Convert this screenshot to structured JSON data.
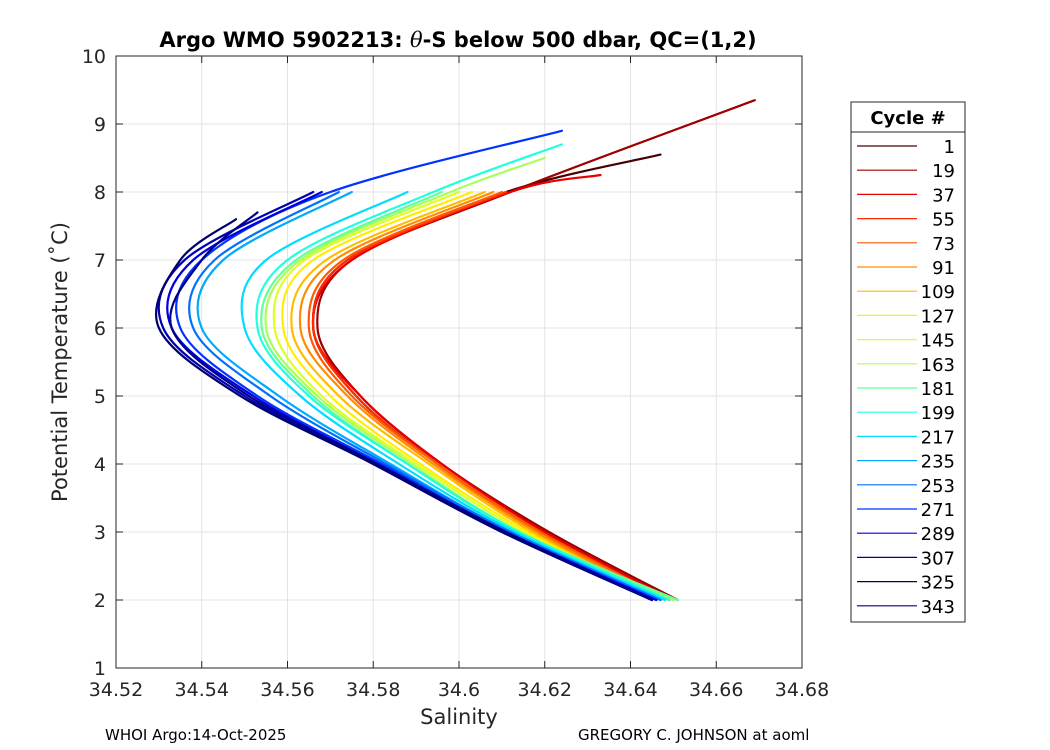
{
  "chart_data": {
    "type": "line",
    "title_parts": [
      "Argo WMO 5902213: ",
      "θ",
      "-S below 500 dbar,  QC=(1,2)"
    ],
    "xlabel": "Salinity",
    "ylabel": "Potential Temperature (˚C)",
    "xlim": [
      34.52,
      34.68
    ],
    "ylim": [
      1,
      10
    ],
    "xticks": [
      34.52,
      34.54,
      34.56,
      34.58,
      34.6,
      34.62,
      34.64,
      34.66,
      34.68
    ],
    "xtick_labels": [
      "34.52",
      "34.54",
      "34.56",
      "34.58",
      "34.6",
      "34.62",
      "34.64",
      "34.66",
      "34.68"
    ],
    "yticks": [
      1,
      2,
      3,
      4,
      5,
      6,
      7,
      8,
      9,
      10
    ],
    "ytick_labels": [
      "1",
      "2",
      "3",
      "4",
      "5",
      "6",
      "7",
      "8",
      "9",
      "10"
    ],
    "grid": true,
    "legend_title": "Cycle #",
    "legend_position": "outside-right",
    "series": [
      {
        "name": "1",
        "color": "#4a0000",
        "theta": [
          2.0,
          3.0,
          4.0,
          5.0,
          6.0,
          7.0,
          8.0,
          8.55
        ],
        "salinity": [
          34.649,
          34.619,
          34.595,
          34.576,
          34.566,
          34.574,
          34.611,
          34.647
        ]
      },
      {
        "name": "19",
        "color": "#9e0000",
        "theta": [
          2.0,
          3.0,
          4.0,
          5.0,
          6.0,
          7.0,
          8.0,
          9.35
        ],
        "salinity": [
          34.651,
          34.621,
          34.596,
          34.577,
          34.567,
          34.575,
          34.612,
          34.669
        ]
      },
      {
        "name": "37",
        "color": "#e60000",
        "theta": [
          2.0,
          3.0,
          4.0,
          5.0,
          6.0,
          7.0,
          8.0,
          8.25
        ],
        "salinity": [
          34.65,
          34.62,
          34.596,
          34.577,
          34.566,
          34.575,
          34.612,
          34.633
        ]
      },
      {
        "name": "55",
        "color": "#ff2a00",
        "theta": [
          2.0,
          3.0,
          4.0,
          5.0,
          6.0,
          7.0,
          8.0
        ],
        "salinity": [
          34.649,
          34.619,
          34.595,
          34.576,
          34.566,
          34.574,
          34.611
        ]
      },
      {
        "name": "73",
        "color": "#ff5a00",
        "theta": [
          2.0,
          3.0,
          4.0,
          5.0,
          6.0,
          7.0,
          8.0
        ],
        "salinity": [
          34.649,
          34.619,
          34.595,
          34.575,
          34.565,
          34.573,
          34.61
        ]
      },
      {
        "name": "91",
        "color": "#ff8c00",
        "theta": [
          2.0,
          3.0,
          4.0,
          5.0,
          6.0,
          7.0,
          8.0
        ],
        "salinity": [
          34.648,
          34.618,
          34.594,
          34.574,
          34.563,
          34.571,
          34.608
        ]
      },
      {
        "name": "109",
        "color": "#ffbc00",
        "theta": [
          2.0,
          3.0,
          4.0,
          5.0,
          6.0,
          7.0,
          8.0
        ],
        "salinity": [
          34.647,
          34.617,
          34.593,
          34.572,
          34.561,
          34.569,
          34.606
        ]
      },
      {
        "name": "127",
        "color": "#ffee00",
        "theta": [
          2.0,
          3.0,
          4.0,
          5.0,
          6.0,
          7.0,
          8.0
        ],
        "salinity": [
          34.647,
          34.616,
          34.591,
          34.57,
          34.559,
          34.566,
          34.603
        ]
      },
      {
        "name": "145",
        "color": "#ddff22",
        "theta": [
          2.0,
          3.0,
          4.0,
          5.0,
          6.0,
          7.0,
          8.0
        ],
        "salinity": [
          34.648,
          34.615,
          34.59,
          34.568,
          34.557,
          34.564,
          34.6
        ]
      },
      {
        "name": "163",
        "color": "#aaff55",
        "theta": [
          2.0,
          3.0,
          4.0,
          5.0,
          6.0,
          7.0,
          8.0,
          8.5
        ],
        "salinity": [
          34.65,
          34.614,
          34.589,
          34.567,
          34.555,
          34.563,
          34.598,
          34.62
        ]
      },
      {
        "name": "181",
        "color": "#66ff99",
        "theta": [
          2.0,
          3.0,
          4.0,
          5.0,
          6.0,
          7.0,
          8.0
        ],
        "salinity": [
          34.651,
          34.614,
          34.588,
          34.566,
          34.554,
          34.562,
          34.596
        ]
      },
      {
        "name": "199",
        "color": "#22ffdd",
        "theta": [
          2.0,
          3.0,
          4.0,
          5.0,
          6.0,
          7.0,
          8.0,
          8.7
        ],
        "salinity": [
          34.649,
          34.614,
          34.588,
          34.565,
          34.553,
          34.56,
          34.594,
          34.624
        ]
      },
      {
        "name": "217",
        "color": "#00ddff",
        "theta": [
          2.0,
          3.0,
          4.0,
          5.0,
          6.0,
          7.0,
          8.0
        ],
        "salinity": [
          34.648,
          34.613,
          34.586,
          34.563,
          34.55,
          34.555,
          34.588
        ]
      },
      {
        "name": "235",
        "color": "#00aaff",
        "theta": [
          2.0,
          3.0,
          4.0,
          5.0,
          6.0,
          7.0,
          8.0
        ],
        "salinity": [
          34.647,
          34.612,
          34.584,
          34.558,
          34.54,
          34.545,
          34.575
        ]
      },
      {
        "name": "253",
        "color": "#0070ff",
        "theta": [
          2.0,
          3.0,
          4.0,
          5.0,
          6.0,
          7.0,
          8.0
        ],
        "salinity": [
          34.647,
          34.612,
          34.583,
          34.556,
          34.538,
          34.543,
          34.572
        ]
      },
      {
        "name": "271",
        "color": "#0033ff",
        "theta": [
          2.0,
          3.0,
          4.0,
          5.0,
          6.0,
          7.0,
          8.0,
          8.9
        ],
        "salinity": [
          34.646,
          34.611,
          34.582,
          34.553,
          34.535,
          34.54,
          34.57,
          34.624
        ]
      },
      {
        "name": "289",
        "color": "#0000e0",
        "theta": [
          2.0,
          3.0,
          4.0,
          5.0,
          6.0,
          7.0,
          8.0
        ],
        "salinity": [
          34.646,
          34.611,
          34.581,
          34.552,
          34.533,
          34.538,
          34.568
        ]
      },
      {
        "name": "307",
        "color": "#0000b0",
        "theta": [
          2.0,
          3.0,
          4.0,
          5.0,
          6.0,
          7.0,
          8.0
        ],
        "salinity": [
          34.645,
          34.61,
          34.58,
          34.55,
          34.531,
          34.536,
          34.566
        ]
      },
      {
        "name": "325",
        "color": "#000070",
        "theta": [
          2.0,
          3.0,
          4.0,
          5.0,
          6.0,
          7.0,
          7.6
        ],
        "salinity": [
          34.645,
          34.61,
          34.58,
          34.549,
          34.53,
          34.535,
          34.548
        ]
      },
      {
        "name": "343",
        "color": "#00008b",
        "theta": [
          2.0,
          3.0,
          4.0,
          5.0,
          6.0,
          7.0,
          7.7
        ],
        "salinity": [
          34.645,
          34.611,
          34.581,
          34.551,
          34.533,
          34.54,
          34.553
        ]
      }
    ]
  },
  "footer": {
    "left": "WHOI Argo:14-Oct-2025",
    "right": "GREGORY C. JOHNSON at aoml"
  }
}
